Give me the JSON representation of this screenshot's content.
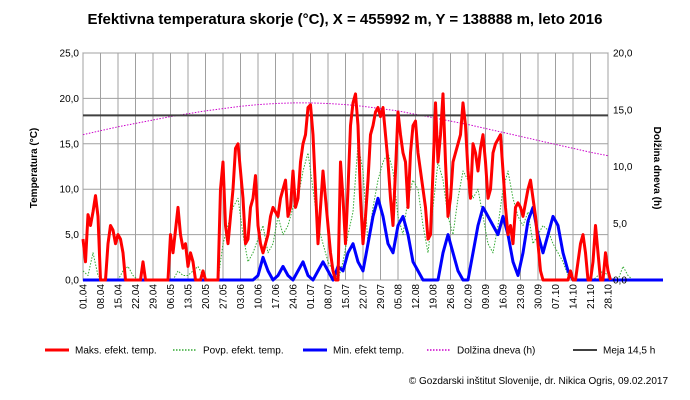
{
  "chart_data": {
    "type": "line",
    "title": "Efektivna temperatura skorje (°C), X = 455992 m, Y = 138888 m, leto 2016",
    "ylabel": "Temperatura (°C)",
    "y2label": "Dolžina dneva (h)",
    "ylim": [
      0,
      25
    ],
    "y2lim": [
      0,
      20
    ],
    "y_ticks": [
      "0,0",
      "5,0",
      "10,0",
      "15,0",
      "20,0",
      "25,0"
    ],
    "y2_ticks": [
      "0,0",
      "5,0",
      "10,0",
      "15,0",
      "20,0"
    ],
    "x_ticks": [
      "01.04",
      "08.04",
      "15.04",
      "22.04",
      "29.04",
      "06.05",
      "13.05",
      "20.05",
      "27.05",
      "03.06",
      "10.06",
      "17.06",
      "24.06",
      "01.07",
      "08.07",
      "15.07",
      "22.07",
      "29.07",
      "05.08",
      "12.08",
      "19.08",
      "26.08",
      "02.09",
      "09.09",
      "16.09",
      "23.09",
      "30.09",
      "07.10",
      "14.10",
      "21.10",
      "28.10"
    ],
    "grid": true,
    "legend_position": "bottom",
    "credit": "© Gozdarski inštitut Slovenije, dr. Nikica Ogris, 09.02.2017",
    "series": [
      {
        "name": "Maks. efekt. temp.",
        "color": "#ff0000",
        "style": "solid",
        "axis": "left",
        "day_step": 1,
        "values": [
          4.5,
          2.0,
          7.2,
          6.0,
          7.5,
          9.3,
          7.0,
          0,
          0,
          0,
          4.0,
          6.0,
          5.5,
          4.0,
          5.0,
          4.5,
          3.0,
          0,
          0,
          0,
          0,
          0,
          0,
          0,
          2.0,
          0,
          0,
          0,
          0,
          0,
          0,
          0,
          0,
          0,
          0,
          5.0,
          3.0,
          5.5,
          8.0,
          5.0,
          3.5,
          4.0,
          1.5,
          3.0,
          2.0,
          0,
          0,
          0,
          1.0,
          0,
          0,
          0,
          0,
          0,
          0,
          10.0,
          13.0,
          6.0,
          4.0,
          7.0,
          10.0,
          14.5,
          15.0,
          12.0,
          9.0,
          4.0,
          4.5,
          8.0,
          9.0,
          11.5,
          6.0,
          4.0,
          3.0,
          4.0,
          5.0,
          7.0,
          8.0,
          7.5,
          7.0,
          9.0,
          10.0,
          11.0,
          7.0,
          8.0,
          12.0,
          8.0,
          9.0,
          13.0,
          15.0,
          16.0,
          19.0,
          19.3,
          16.0,
          10.0,
          4.0,
          8.0,
          12.0,
          9.0,
          6.0,
          3.0,
          1.0,
          0,
          0,
          13.0,
          9.0,
          4.0,
          10.0,
          17.0,
          19.5,
          20.5,
          17.0,
          9.0,
          4.0,
          7.0,
          11.0,
          16.0,
          17.0,
          18.5,
          19.0,
          18.0,
          19.0,
          16.0,
          13.0,
          9.0,
          6.0,
          12.0,
          18.5,
          16.0,
          14.0,
          13.0,
          8.0,
          14.0,
          17.0,
          17.5,
          14.0,
          12.0,
          10.0,
          8.0,
          4.5,
          5.0,
          12.0,
          19.5,
          13.0,
          16.0,
          20.5,
          13.0,
          7.0,
          9.0,
          13.0,
          14.0,
          15.0,
          16.0,
          19.5,
          17.0,
          12.0,
          9.0,
          15.0,
          14.0,
          12.0,
          14.5,
          16.0,
          13.0,
          9.0,
          10.0,
          14.0,
          15.0,
          15.5,
          16.0,
          12.0,
          8.0,
          5.0,
          6.0,
          4.0,
          8.0,
          8.5,
          8.0,
          7.0,
          8.5,
          10.0,
          11.0,
          9.0,
          7.0,
          4.0,
          1.0,
          0,
          0,
          0,
          0,
          0,
          0,
          0,
          0,
          0,
          0,
          0,
          1.0,
          0,
          0,
          2.0,
          4.0,
          5.0,
          3.0,
          0,
          0,
          2.0,
          6.0,
          3.0,
          0,
          0,
          3.0,
          1.0,
          0
        ]
      },
      {
        "name": "Povp. efekt. temp.",
        "color": "#33aa33",
        "style": "dotted",
        "axis": "left",
        "day_step": 2,
        "values": [
          1.0,
          0.5,
          3.0,
          0.5,
          0,
          0,
          0,
          0,
          1.0,
          1.5,
          0.5,
          0,
          0,
          0,
          0,
          0,
          0,
          0,
          0,
          1.0,
          0.5,
          0.5,
          1.0,
          1.5,
          0.5,
          0,
          0,
          0,
          4.0,
          6.0,
          8.0,
          9.0,
          5.0,
          2.0,
          3.0,
          4.5,
          6.0,
          3.0,
          4.0,
          7.0,
          5.0,
          6.0,
          8.0,
          9.0,
          12.0,
          14.0,
          10.0,
          6.0,
          4.0,
          2.0,
          1.0,
          0,
          2.0,
          5.0,
          7.5,
          15.0,
          12.0,
          4.0,
          8.0,
          11.0,
          13.0,
          14.0,
          12.0,
          7.0,
          5.0,
          9.0,
          11.0,
          10.0,
          6.0,
          3.0,
          8.0,
          13.0,
          11.0,
          7.0,
          5.0,
          9.0,
          12.0,
          11.0,
          9.0,
          10.0,
          7.0,
          4.0,
          3.0,
          6.0,
          10.0,
          12.0,
          9.0,
          7.0,
          6.0,
          7.5,
          4.0,
          5.0,
          6.0,
          5.5,
          4.0,
          3.0,
          2.0,
          0.5,
          0,
          0,
          0,
          0,
          0,
          0.5,
          1.0,
          0.5,
          0,
          0,
          1.5,
          0.5,
          0
        ]
      },
      {
        "name": "Min. efekt temp.",
        "color": "#0000ff",
        "style": "solid",
        "axis": "left",
        "day_step": 2,
        "values": [
          0,
          0,
          0,
          0,
          0,
          0,
          0,
          0,
          0,
          0,
          0,
          0,
          0,
          0,
          0,
          0,
          0,
          0,
          0,
          0,
          0,
          0,
          0,
          0,
          0,
          0,
          0,
          0,
          0,
          0,
          0,
          0,
          0,
          0,
          0,
          0.5,
          2.5,
          1.0,
          0,
          0.5,
          1.5,
          0.5,
          0,
          1.0,
          2.0,
          0.5,
          0,
          1.0,
          2.0,
          1.0,
          0,
          1.5,
          1.0,
          3.0,
          4.0,
          2.0,
          1.0,
          4.0,
          7.0,
          9.0,
          7.0,
          4.0,
          3.0,
          6.0,
          7.0,
          5.0,
          2.0,
          1.0,
          0,
          0,
          0,
          0,
          3.0,
          5.0,
          3.0,
          1.0,
          0,
          0,
          3.0,
          6.0,
          8.0,
          7.0,
          6.0,
          5.0,
          7.0,
          5.0,
          2.0,
          0.5,
          3.0,
          6.5,
          8.0,
          5.0,
          3.0,
          5.0,
          7.0,
          6.0,
          3.0,
          1.0,
          0,
          0,
          0,
          0,
          0,
          0,
          0,
          0,
          0,
          0,
          0,
          0,
          0,
          0,
          0,
          0,
          0,
          0,
          0
        ]
      },
      {
        "name": "Dolžina dneva (h)",
        "color": "#cc00cc",
        "style": "dotted",
        "axis": "right",
        "day_step": 7,
        "values": [
          12.8,
          13.15,
          13.5,
          13.8,
          14.1,
          14.4,
          14.65,
          14.9,
          15.1,
          15.3,
          15.45,
          15.55,
          15.6,
          15.6,
          15.55,
          15.45,
          15.3,
          15.1,
          14.9,
          14.6,
          14.3,
          14.0,
          13.7,
          13.35,
          13.0,
          12.65,
          12.3,
          11.95,
          11.6,
          11.25,
          10.95
        ]
      },
      {
        "name": "Meja 14,5 h",
        "color": "#404040",
        "style": "solid",
        "axis": "right",
        "constant": 14.5
      }
    ]
  }
}
